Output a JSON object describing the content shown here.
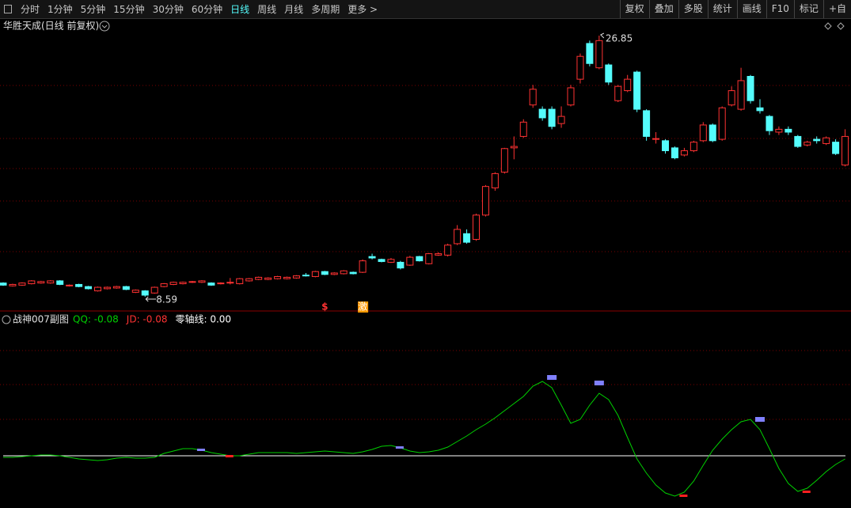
{
  "toolbar": {
    "left": [
      "分时",
      "1分钟",
      "5分钟",
      "15分钟",
      "30分钟",
      "60分钟",
      "日线",
      "周线",
      "月线",
      "多周期",
      "更多 >"
    ],
    "active_index": 6,
    "right": [
      "复权",
      "叠加",
      "多股",
      "统计",
      "画线",
      "F10",
      "标记",
      "+自"
    ]
  },
  "title": "华胜天成(日线 前复权)",
  "main": {
    "open": [
      9.55,
      9.35,
      9.4,
      9.5,
      9.55,
      9.55,
      9.7,
      9.35,
      9.45,
      9.3,
      9.0,
      9.15,
      9.2,
      9.3,
      8.9,
      9.0,
      8.85,
      9.3,
      9.45,
      9.5,
      9.6,
      9.6,
      9.55,
      9.5,
      9.55,
      9.5,
      9.7,
      9.8,
      9.8,
      9.85,
      9.85,
      9.9,
      10.1,
      10.0,
      10.35,
      10.15,
      10.2,
      10.3,
      10.3,
      11.4,
      11.2,
      11.0,
      11.0,
      10.8,
      11.4,
      10.9,
      11.5,
      11.5,
      12.3,
      13.0,
      12.6,
      14.3,
      16.2,
      17.3,
      19.0,
      19.8,
      22.0,
      21.7,
      21.7,
      20.7,
      22.0,
      23.8,
      26.3,
      24.6,
      24.8,
      22.3,
      23.0,
      24.3,
      21.6,
      19.6,
      19.5,
      19.0,
      18.5,
      18.8,
      19.5,
      20.6,
      19.6,
      22.0,
      21.7,
      24.0,
      21.8,
      21.2,
      20.1,
      20.3,
      19.8,
      19.2,
      19.6,
      19.3,
      19.4,
      17.8
    ],
    "high": [
      9.6,
      9.5,
      9.6,
      9.75,
      9.7,
      9.75,
      9.75,
      9.45,
      9.5,
      9.35,
      9.3,
      9.3,
      9.35,
      9.35,
      9.1,
      9.05,
      9.3,
      9.55,
      9.65,
      9.65,
      9.7,
      9.75,
      9.6,
      9.6,
      9.9,
      9.9,
      9.9,
      10.0,
      9.95,
      10.05,
      10.0,
      10.1,
      10.25,
      10.4,
      10.4,
      10.3,
      10.45,
      10.35,
      11.2,
      11.6,
      11.25,
      11.3,
      11.1,
      11.45,
      11.45,
      11.65,
      11.7,
      12.3,
      13.6,
      13.3,
      14.4,
      16.4,
      17.3,
      19.0,
      19.8,
      21.0,
      23.4,
      21.9,
      21.9,
      21.9,
      23.4,
      25.6,
      26.5,
      26.85,
      24.9,
      23.4,
      24.1,
      24.4,
      21.7,
      20.1,
      19.6,
      19.1,
      19.0,
      19.5,
      20.8,
      20.7,
      21.9,
      23.3,
      24.6,
      24.1,
      22.4,
      21.3,
      20.5,
      20.5,
      19.9,
      19.5,
      19.8,
      19.8,
      19.6,
      20.3
    ],
    "low": [
      9.35,
      9.3,
      9.35,
      9.45,
      9.5,
      9.5,
      9.4,
      9.3,
      9.25,
      9.1,
      8.95,
      9.1,
      9.15,
      9.05,
      8.85,
      8.59,
      8.8,
      9.25,
      9.4,
      9.45,
      9.55,
      9.55,
      9.35,
      9.45,
      9.45,
      9.45,
      9.65,
      9.75,
      9.75,
      9.8,
      9.8,
      9.85,
      10.0,
      9.95,
      10.1,
      10.1,
      10.15,
      10.15,
      10.25,
      11.2,
      11.0,
      10.95,
      10.5,
      10.75,
      11.05,
      10.85,
      11.45,
      11.4,
      12.2,
      12.3,
      12.5,
      14.2,
      16.0,
      17.2,
      18.2,
      19.7,
      21.8,
      20.9,
      20.3,
      20.4,
      21.9,
      23.5,
      24.7,
      24.5,
      23.4,
      22.2,
      22.9,
      21.5,
      19.5,
      19.3,
      18.6,
      18.2,
      18.4,
      18.7,
      19.4,
      19.4,
      19.5,
      21.9,
      21.6,
      22.1,
      21.4,
      19.9,
      19.9,
      19.9,
      19.0,
      19.1,
      19.3,
      19.2,
      18.5,
      17.7
    ],
    "close": [
      9.4,
      9.45,
      9.55,
      9.7,
      9.65,
      9.7,
      9.45,
      9.4,
      9.3,
      9.15,
      9.25,
      9.25,
      9.3,
      9.1,
      9.05,
      8.7,
      9.25,
      9.5,
      9.6,
      9.6,
      9.65,
      9.7,
      9.4,
      9.55,
      9.6,
      9.85,
      9.85,
      9.95,
      9.9,
      10.0,
      9.95,
      10.05,
      10.1,
      10.35,
      10.15,
      10.25,
      10.4,
      10.2,
      11.1,
      11.3,
      11.05,
      11.2,
      10.6,
      11.35,
      11.1,
      11.6,
      11.6,
      12.2,
      13.3,
      12.4,
      14.3,
      16.3,
      17.2,
      18.95,
      19.1,
      20.8,
      23.1,
      21.1,
      20.5,
      21.2,
      23.2,
      25.4,
      24.9,
      26.5,
      23.6,
      23.3,
      23.8,
      21.7,
      19.8,
      19.65,
      18.8,
      18.3,
      18.8,
      19.4,
      20.6,
      19.5,
      21.8,
      23.0,
      23.7,
      22.3,
      21.6,
      20.2,
      20.3,
      20.1,
      19.1,
      19.4,
      19.5,
      19.7,
      18.6,
      19.8
    ],
    "high_label_index": 63,
    "low_label_index": 15,
    "annotations": [
      {
        "index": 34,
        "text": "$",
        "color": "#ff3232"
      },
      {
        "index": 38,
        "text": "激",
        "color": "#ff9900"
      }
    ]
  },
  "indicator": {
    "name": "战神007副图",
    "legend": [
      {
        "text": "QQ: -0.08",
        "color": "#00d000"
      },
      {
        "text": "JD: -0.08",
        "color": "#ff3232"
      },
      {
        "text": "零轴线: 0.00",
        "color": "#ffffff"
      }
    ],
    "values": [
      -0.04,
      -0.04,
      -0.02,
      0,
      0.02,
      0.02,
      0,
      -0.04,
      -0.08,
      -0.1,
      -0.12,
      -0.1,
      -0.06,
      -0.04,
      -0.06,
      -0.06,
      -0.04,
      0.06,
      0.12,
      0.18,
      0.18,
      0.14,
      0.08,
      0.04,
      0,
      0,
      0.04,
      0.08,
      0.08,
      0.08,
      0.08,
      0.06,
      0.08,
      0.1,
      0.12,
      0.1,
      0.08,
      0.06,
      0.1,
      0.16,
      0.24,
      0.26,
      0.2,
      0.12,
      0.08,
      0.1,
      0.14,
      0.22,
      0.36,
      0.5,
      0.66,
      0.8,
      0.96,
      1.14,
      1.32,
      1.5,
      1.76,
      1.88,
      1.72,
      1.28,
      0.82,
      0.92,
      1.28,
      1.58,
      1.42,
      1.02,
      0.46,
      -0.08,
      -0.44,
      -0.74,
      -0.94,
      -1.02,
      -0.92,
      -0.64,
      -0.24,
      0.14,
      0.42,
      0.66,
      0.86,
      0.92,
      0.66,
      0.18,
      -0.32,
      -0.7,
      -0.9,
      -0.82,
      -0.62,
      -0.4,
      -0.22,
      -0.08
    ],
    "signals": [
      {
        "index": 21,
        "color": "#8080ff"
      },
      {
        "index": 24,
        "color": "#ff2020"
      },
      {
        "index": 42,
        "color": "#8080ff"
      },
      {
        "index": 58,
        "color": "#8080ff"
      },
      {
        "index": 63,
        "color": "#8080ff"
      },
      {
        "index": 72,
        "color": "#ff2020"
      },
      {
        "index": 80,
        "color": "#8080ff"
      },
      {
        "index": 85,
        "color": "#ff2020"
      }
    ]
  }
}
